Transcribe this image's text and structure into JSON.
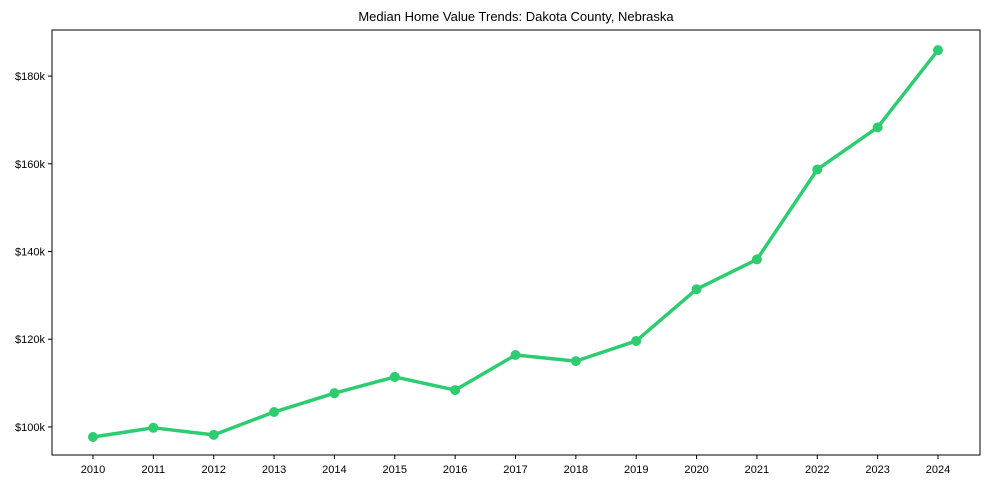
{
  "chart_data": {
    "type": "line",
    "title": "Median Home Value Trends: Dakota County, Nebraska",
    "xlabel": "",
    "ylabel": "",
    "x": [
      "2010",
      "2011",
      "2012",
      "2013",
      "2014",
      "2015",
      "2016",
      "2017",
      "2018",
      "2019",
      "2020",
      "2021",
      "2022",
      "2023",
      "2024"
    ],
    "series": [
      {
        "name": "Median Home Value",
        "color": "#2ecc71",
        "values": [
          97700,
          99800,
          98200,
          103400,
          107700,
          111400,
          108400,
          116400,
          115000,
          119600,
          131400,
          138200,
          158700,
          168300,
          185900
        ]
      }
    ],
    "yticks": [
      100000,
      120000,
      140000,
      160000,
      180000
    ],
    "ytick_labels": [
      "$100k",
      "$120k",
      "$140k",
      "$160k",
      "$180k"
    ],
    "ylim": [
      93600,
      190500
    ],
    "grid": false,
    "legend": "none"
  }
}
